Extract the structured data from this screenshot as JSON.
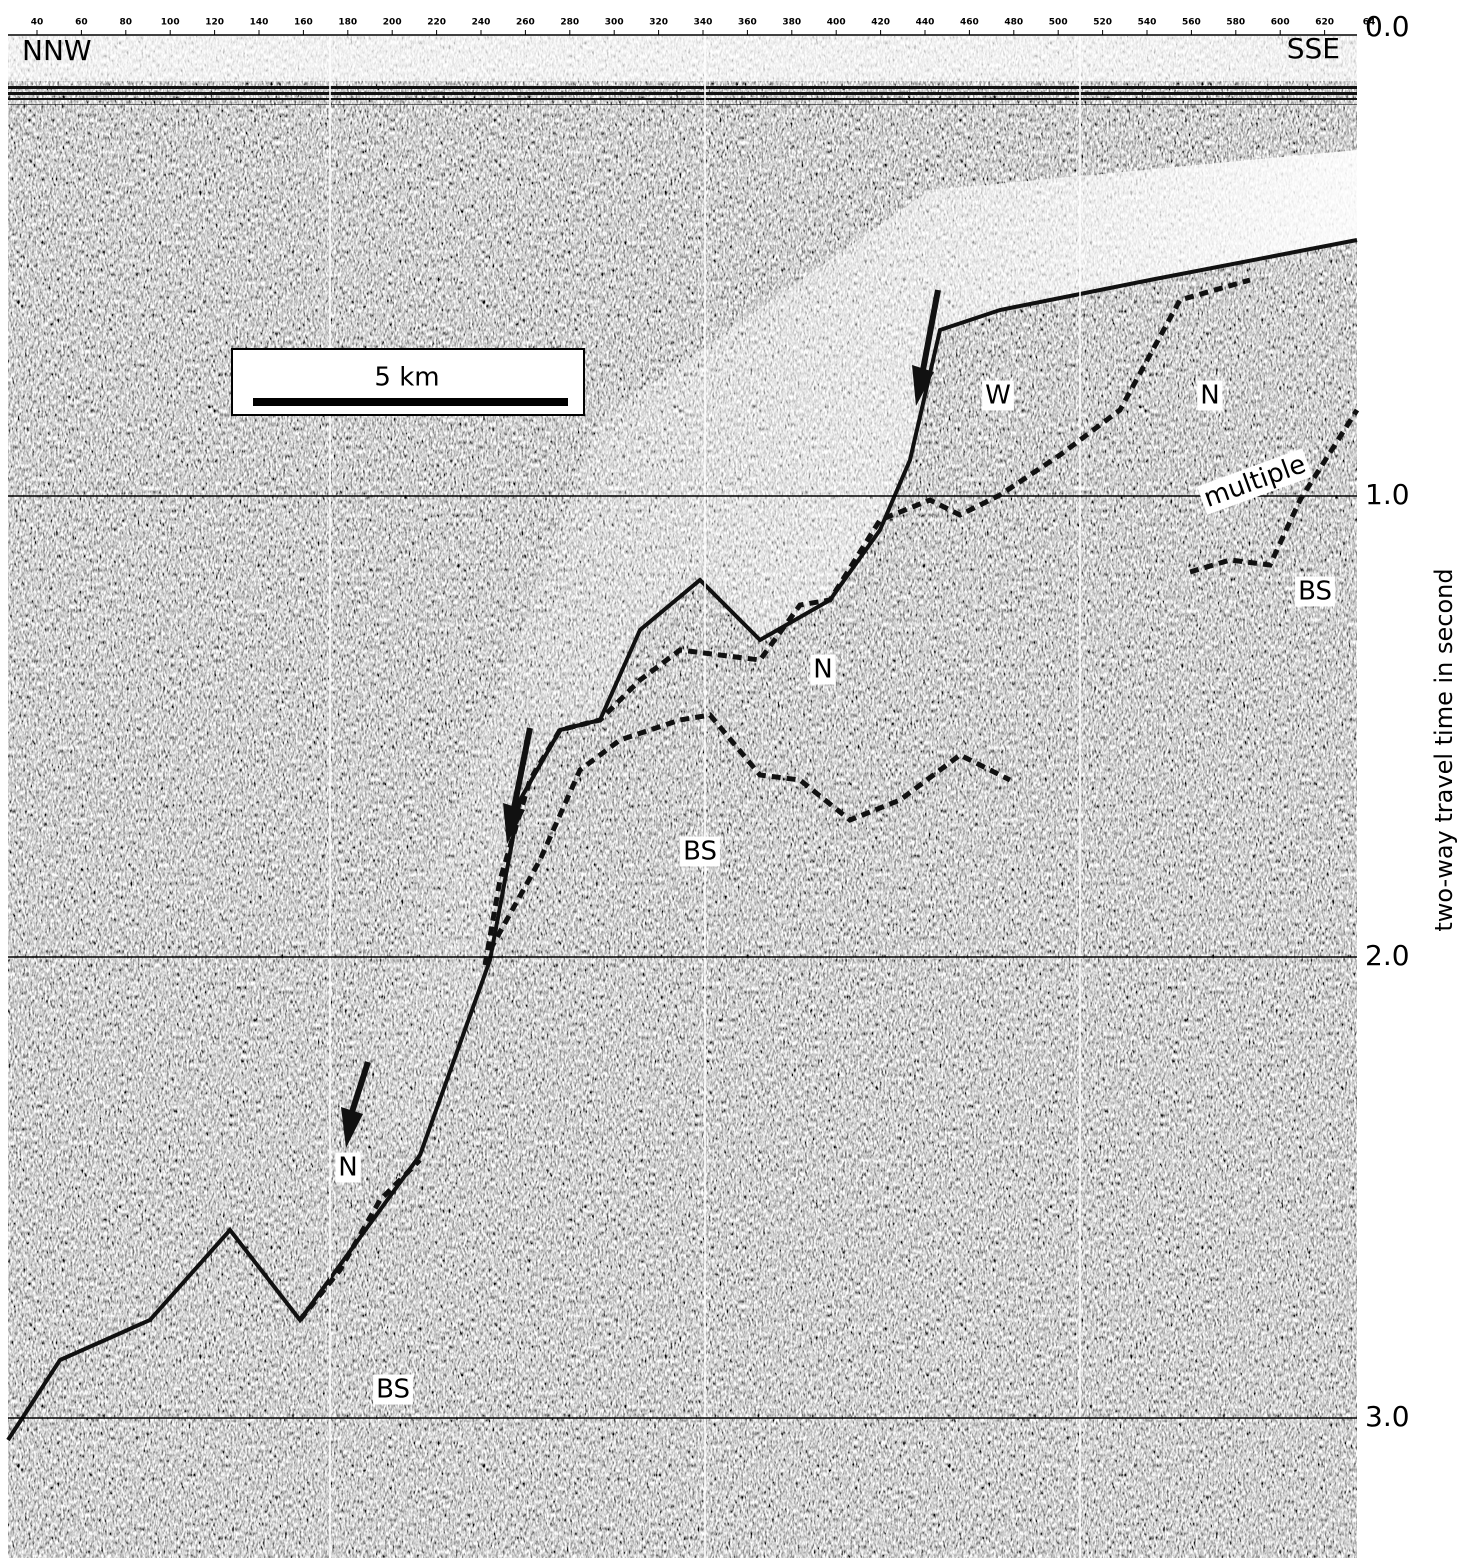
{
  "top_axis": {
    "ticks": [
      "40",
      "60",
      "80",
      "100",
      "120",
      "140",
      "160",
      "180",
      "200",
      "220",
      "240",
      "260",
      "280",
      "300",
      "320",
      "340",
      "360",
      "380",
      "400",
      "420",
      "440",
      "460",
      "480",
      "500",
      "520",
      "540",
      "560",
      "580",
      "600",
      "620",
      "64"
    ]
  },
  "orientation": {
    "left": "NNW",
    "right": "SSE"
  },
  "scale_bar": {
    "label": "5 km"
  },
  "right_axis": {
    "title": "two-way travel time in second",
    "ticks": [
      "0.0",
      "1.0",
      "2.0",
      "3.0"
    ]
  },
  "labels": [
    "W",
    "N",
    "N",
    "N",
    "multiple",
    "BS",
    "BS",
    "BS"
  ]
}
